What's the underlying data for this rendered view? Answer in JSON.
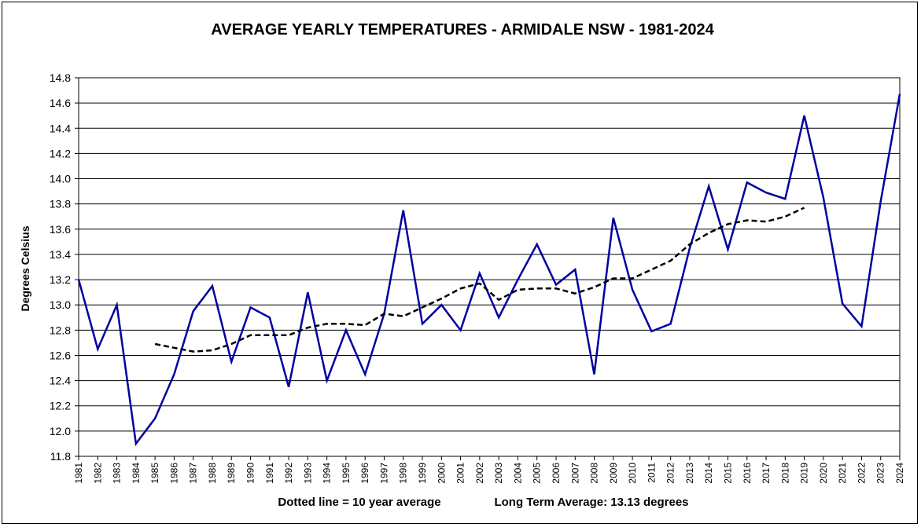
{
  "chart_data": {
    "type": "line",
    "title": "AVERAGE YEARLY TEMPERATURES - ARMIDALE NSW - 1981-2024",
    "xlabel": "",
    "ylabel": "Degrees Celsius",
    "ylim": [
      11.8,
      14.8
    ],
    "y_ticks": [
      "11.8",
      "12.0",
      "12.2",
      "12.4",
      "12.6",
      "12.8",
      "13.0",
      "13.2",
      "13.4",
      "13.6",
      "13.8",
      "14.0",
      "14.2",
      "14.4",
      "14.6",
      "14.8"
    ],
    "grid": "horizontal",
    "categories": [
      "1981",
      "1982",
      "1983",
      "1984",
      "1985",
      "1986",
      "1987",
      "1988",
      "1989",
      "1990",
      "1991",
      "1992",
      "1993",
      "1994",
      "1995",
      "1996",
      "1997",
      "1998",
      "1999",
      "2000",
      "2001",
      "2002",
      "2003",
      "2004",
      "2005",
      "2006",
      "2007",
      "2008",
      "2009",
      "2010",
      "2011",
      "2012",
      "2013",
      "2014",
      "2015",
      "2016",
      "2017",
      "2018",
      "2019",
      "2020",
      "2021",
      "2022",
      "2023",
      "2024"
    ],
    "series": [
      {
        "name": "",
        "style": "solid",
        "color": "#0000a0",
        "values": [
          13.2,
          12.65,
          13.0,
          11.9,
          12.1,
          12.45,
          12.95,
          13.15,
          12.55,
          12.98,
          12.9,
          12.35,
          13.1,
          12.4,
          12.8,
          12.45,
          12.93,
          13.75,
          12.85,
          13.0,
          12.8,
          13.25,
          12.9,
          13.2,
          13.48,
          13.16,
          13.28,
          12.45,
          13.69,
          13.12,
          12.79,
          12.85,
          13.45,
          13.94,
          13.44,
          13.97,
          13.89,
          13.84,
          14.5,
          13.85,
          13.01,
          12.83,
          13.82,
          14.67
        ]
      },
      {
        "name": "",
        "style": "dotted",
        "color": "#000000",
        "values": [
          null,
          null,
          null,
          null,
          12.69,
          12.66,
          12.63,
          12.64,
          12.69,
          12.76,
          12.76,
          12.76,
          12.82,
          12.85,
          12.85,
          12.84,
          12.93,
          12.91,
          12.98,
          13.05,
          13.13,
          13.17,
          13.04,
          13.12,
          13.13,
          13.13,
          13.09,
          13.14,
          13.21,
          13.21,
          13.28,
          13.35,
          13.48,
          13.57,
          13.64,
          13.67,
          13.66,
          13.7,
          13.77,
          null,
          null,
          null,
          null,
          null
        ]
      }
    ],
    "footer_left": "Dotted line = 10 year average",
    "footer_right": "Long Term Average: 13.13 degrees"
  }
}
